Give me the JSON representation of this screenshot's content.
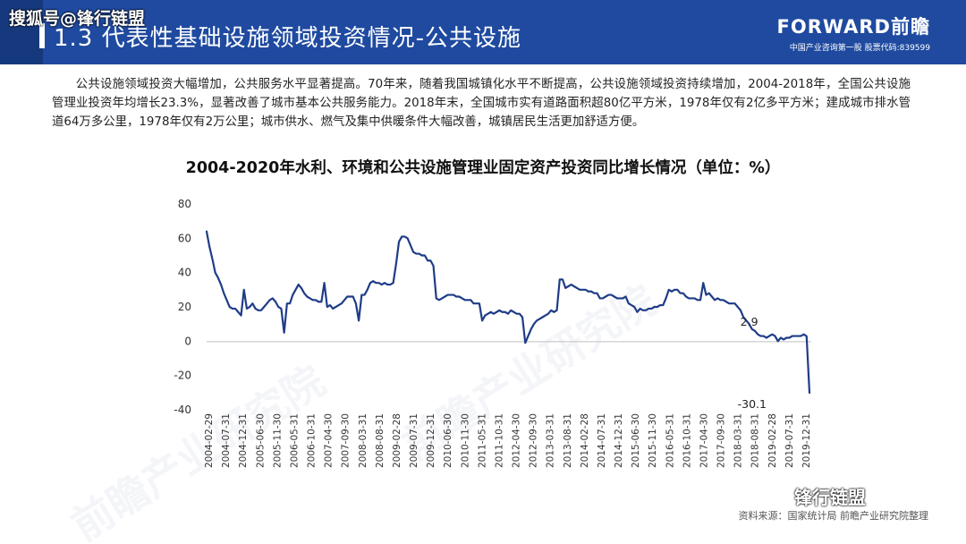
{
  "header": {
    "title": "1.3  代表性基础设施领域投资情况-公共设施",
    "brand_name": "FORWARD前瞻",
    "brand_subtitle": "中国产业咨询第一股  股票代码:839599"
  },
  "watermarks": {
    "top_left": "搜狐号@锋行链盟",
    "bottom_right": "锋行链盟",
    "background_text": "前瞻产业研究院"
  },
  "intro_text": "公共设施领域投资大幅增加，公共服务水平显著提高。70年来，随着我国城镇化水平不断提高，公共设施领域投资持续增加，2004-2018年，全国公共设施管理业投资年均增长23.3%，显著改善了城市基本公共服务能力。2018年末，全国城市实有道路面积超80亿平方米，1978年仅有2亿多平方米；建成城市排水管道64万多公里，1978年仅有2万公里；城市供水、燃气及集中供暖条件大幅改善，城镇居民生活更加舒适方便。",
  "source": "资料来源：国家统计局 前瞻产业研究院整理",
  "colors": {
    "header": "#1f4aa0",
    "line": "#1f3c88"
  },
  "chart_data": {
    "type": "line",
    "title": "2004-2020年水利、环境和公共设施管理业固定资产投资同比增长情况（单位：%）",
    "ylim": [
      -40,
      80
    ],
    "yticks": [
      -40,
      -20,
      0,
      20,
      40,
      60,
      80
    ],
    "xtick_labels": [
      "2004-02-29",
      "2004-07-31",
      "2004-12-31",
      "2005-06-30",
      "2005-11-30",
      "2006-05-31",
      "2006-10-31",
      "2007-04-30",
      "2007-09-30",
      "2008-03-31",
      "2008-08-31",
      "2009-02-28",
      "2009-07-31",
      "2009-12-31",
      "2010-06-30",
      "2010-11-30",
      "2011-05-31",
      "2011-10-31",
      "2012-04-30",
      "2012-09-30",
      "2013-03-31",
      "2013-08-31",
      "2014-02-28",
      "2014-07-31",
      "2014-12-31",
      "2015-06-30",
      "2015-11-30",
      "2016-05-31",
      "2016-10-31",
      "2017-04-30",
      "2017-09-30",
      "2018-03-31",
      "2018-08-31",
      "2019-02-28",
      "2019-07-31",
      "2019-12-31"
    ],
    "annotations": [
      {
        "label": "2.9",
        "x_index": 189,
        "y": 2.9,
        "position": "above"
      },
      {
        "label": "-30.1",
        "x_index": 190,
        "y": -30.1,
        "position": "below"
      }
    ],
    "series": [
      {
        "values": [
          64,
          55,
          48,
          40,
          37,
          33,
          28,
          24,
          20,
          19,
          19,
          17,
          15,
          30,
          19,
          20,
          22,
          19,
          18,
          18,
          20,
          22,
          24,
          25,
          23,
          20,
          19,
          5,
          22,
          22,
          27,
          30,
          33,
          31,
          28,
          26,
          25,
          24,
          24,
          23,
          23,
          34,
          20,
          21,
          19,
          20,
          21,
          22,
          24,
          26,
          26,
          26,
          22,
          12,
          27,
          27,
          30,
          34,
          35,
          34,
          34,
          33,
          34,
          33,
          33,
          34,
          45,
          58,
          61,
          61,
          60,
          56,
          52,
          51,
          51,
          50,
          50,
          47,
          47,
          44,
          25,
          24,
          25,
          26,
          27,
          27,
          27,
          26,
          26,
          25,
          24,
          24,
          24,
          22,
          22,
          22,
          12,
          15,
          16,
          17,
          16,
          17,
          18,
          17,
          17,
          16,
          18,
          17,
          16,
          16,
          14,
          -1,
          3,
          7,
          10,
          12,
          13,
          14,
          15,
          16,
          18,
          17,
          18,
          36,
          36,
          31,
          32,
          33,
          32,
          31,
          30,
          30,
          30,
          29,
          29,
          28,
          28,
          25,
          25,
          26,
          27,
          27,
          26,
          25,
          25,
          25,
          26,
          22,
          21,
          20,
          17,
          19,
          18,
          18,
          19,
          19,
          20,
          20,
          21,
          21,
          25,
          30,
          29,
          30,
          30,
          28,
          28,
          26,
          25,
          25,
          25,
          24,
          24,
          34,
          27,
          28,
          26,
          24,
          25,
          24,
          24,
          23,
          22,
          22,
          22,
          20,
          18,
          14,
          12,
          10,
          7,
          6,
          4,
          3,
          3,
          2,
          3,
          4,
          3,
          0,
          2,
          1,
          2,
          2,
          3,
          3,
          3,
          3,
          4,
          2.9,
          -30.1
        ]
      }
    ]
  }
}
